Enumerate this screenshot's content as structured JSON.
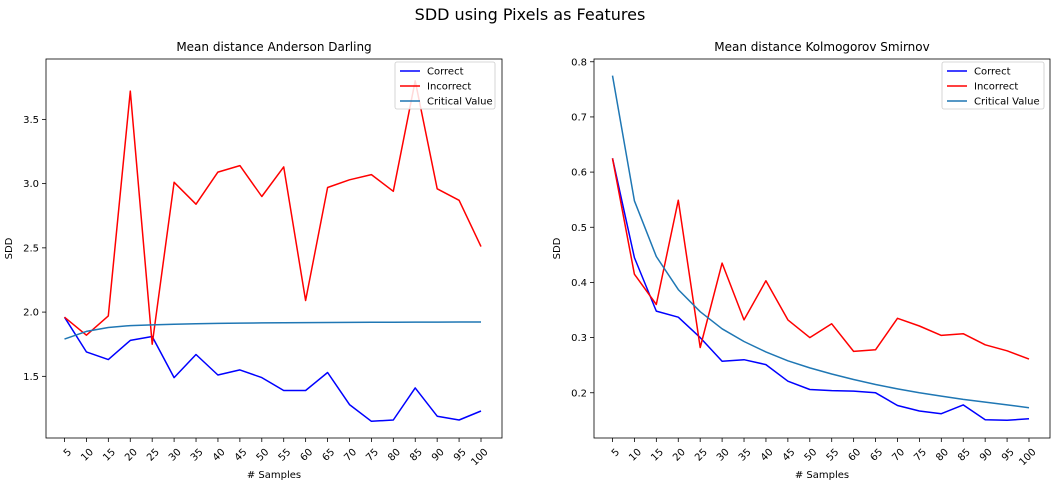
{
  "suptitle": "SDD using Pixels as Features",
  "chart_data": [
    {
      "type": "line",
      "title": "Mean distance Anderson Darling",
      "xlabel": "# Samples",
      "ylabel": "SDD",
      "categories": [
        "5",
        "10",
        "15",
        "20",
        "25",
        "30",
        "35",
        "40",
        "45",
        "50",
        "55",
        "60",
        "65",
        "70",
        "75",
        "80",
        "85",
        "90",
        "95",
        "100"
      ],
      "ylim": [
        1.02,
        3.97
      ],
      "yticks": [
        1.5,
        2.0,
        2.5,
        3.0,
        3.5
      ],
      "ytick_labels": [
        "1.5",
        "2.0",
        "2.5",
        "3.0",
        "3.5"
      ],
      "legend_position": "top-right",
      "series": [
        {
          "name": "Correct",
          "color": "#0000ff",
          "values": [
            1.96,
            1.69,
            1.63,
            1.78,
            1.81,
            1.49,
            1.67,
            1.51,
            1.55,
            1.49,
            1.39,
            1.39,
            1.53,
            1.28,
            1.15,
            1.16,
            1.41,
            1.19,
            1.16,
            1.23
          ]
        },
        {
          "name": "Incorrect",
          "color": "#ff0000",
          "values": [
            1.96,
            1.82,
            1.97,
            3.72,
            1.75,
            3.01,
            2.84,
            3.09,
            3.14,
            2.9,
            3.13,
            2.09,
            2.97,
            3.03,
            3.07,
            2.94,
            3.8,
            2.96,
            2.87,
            2.51
          ]
        },
        {
          "name": "Critical Value",
          "color": "#1f77b4",
          "values": [
            1.79,
            1.85,
            1.88,
            1.895,
            1.9,
            1.905,
            1.91,
            1.912,
            1.914,
            1.916,
            1.917,
            1.918,
            1.919,
            1.92,
            1.921,
            1.921,
            1.922,
            1.922,
            1.923,
            1.923
          ]
        }
      ]
    },
    {
      "type": "line",
      "title": "Mean distance Kolmogorov Smirnov",
      "xlabel": "# Samples",
      "ylabel": "SDD",
      "categories": [
        "5",
        "10",
        "15",
        "20",
        "25",
        "30",
        "35",
        "40",
        "45",
        "50",
        "55",
        "60",
        "65",
        "70",
        "75",
        "80",
        "85",
        "90",
        "95",
        "100"
      ],
      "ylim": [
        0.118,
        0.805
      ],
      "yticks": [
        0.2,
        0.3,
        0.4,
        0.5,
        0.6,
        0.7,
        0.8
      ],
      "ytick_labels": [
        "0.2",
        "0.3",
        "0.4",
        "0.5",
        "0.6",
        "0.7",
        "0.8"
      ],
      "legend_position": "top-right",
      "series": [
        {
          "name": "Correct",
          "color": "#0000ff",
          "values": [
            0.625,
            0.445,
            0.348,
            0.337,
            0.3,
            0.257,
            0.26,
            0.251,
            0.221,
            0.206,
            0.204,
            0.203,
            0.2,
            0.177,
            0.167,
            0.162,
            0.178,
            0.151,
            0.15,
            0.153
          ]
        },
        {
          "name": "Incorrect",
          "color": "#ff0000",
          "values": [
            0.625,
            0.415,
            0.36,
            0.549,
            0.282,
            0.435,
            0.332,
            0.403,
            0.332,
            0.3,
            0.325,
            0.275,
            0.278,
            0.335,
            0.321,
            0.304,
            0.307,
            0.287,
            0.276,
            0.261
          ]
        },
        {
          "name": "Critical Value",
          "color": "#1f77b4",
          "values": [
            0.775,
            0.548,
            0.447,
            0.387,
            0.347,
            0.316,
            0.293,
            0.274,
            0.258,
            0.245,
            0.234,
            0.224,
            0.215,
            0.207,
            0.2,
            0.194,
            0.188,
            0.183,
            0.178,
            0.173
          ]
        }
      ]
    }
  ]
}
